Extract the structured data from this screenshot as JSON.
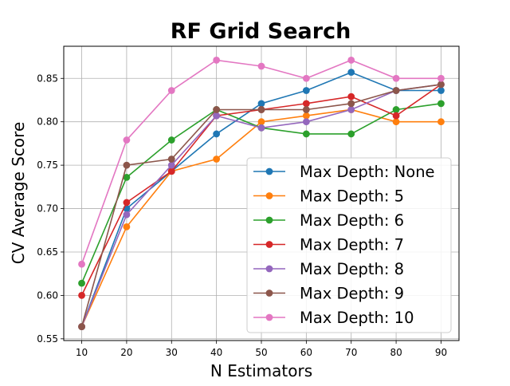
{
  "chart_data": {
    "type": "line",
    "title": "RF Grid Search",
    "xlabel": "N Estimators",
    "ylabel": "CV Average Score",
    "x": [
      10,
      20,
      30,
      40,
      50,
      60,
      70,
      80,
      90
    ],
    "xticks": [
      10,
      20,
      30,
      40,
      50,
      60,
      70,
      80,
      90
    ],
    "yticks": [
      0.55,
      0.6,
      0.65,
      0.7,
      0.75,
      0.8,
      0.85
    ],
    "xlim": [
      6,
      94
    ],
    "ylim": [
      0.548,
      0.887
    ],
    "grid": true,
    "legend_position": "lower-right",
    "series": [
      {
        "name": "Max Depth: None",
        "color": "#1f77b4",
        "values": [
          0.564,
          0.7,
          0.743,
          0.786,
          0.821,
          0.836,
          0.857,
          0.836,
          0.836
        ]
      },
      {
        "name": "Max Depth: 5",
        "color": "#ff7f0e",
        "values": [
          0.564,
          0.679,
          0.743,
          0.757,
          0.8,
          0.807,
          0.814,
          0.8,
          0.8
        ]
      },
      {
        "name": "Max Depth: 6",
        "color": "#2ca02c",
        "values": [
          0.614,
          0.736,
          0.779,
          0.814,
          0.793,
          0.786,
          0.786,
          0.814,
          0.821
        ]
      },
      {
        "name": "Max Depth: 7",
        "color": "#d62728",
        "values": [
          0.6,
          0.707,
          0.743,
          0.807,
          0.814,
          0.821,
          0.829,
          0.807,
          0.843
        ]
      },
      {
        "name": "Max Depth: 8",
        "color": "#9467bd",
        "values": [
          0.564,
          0.693,
          0.75,
          0.807,
          0.793,
          0.8,
          0.814,
          0.836,
          0.843
        ]
      },
      {
        "name": "Max Depth: 9",
        "color": "#8c564b",
        "values": [
          0.564,
          0.75,
          0.757,
          0.814,
          0.814,
          0.814,
          0.821,
          0.836,
          0.843
        ]
      },
      {
        "name": "Max Depth: 10",
        "color": "#e377c2",
        "values": [
          0.636,
          0.779,
          0.836,
          0.871,
          0.864,
          0.85,
          0.871,
          0.85,
          0.85
        ]
      }
    ]
  }
}
